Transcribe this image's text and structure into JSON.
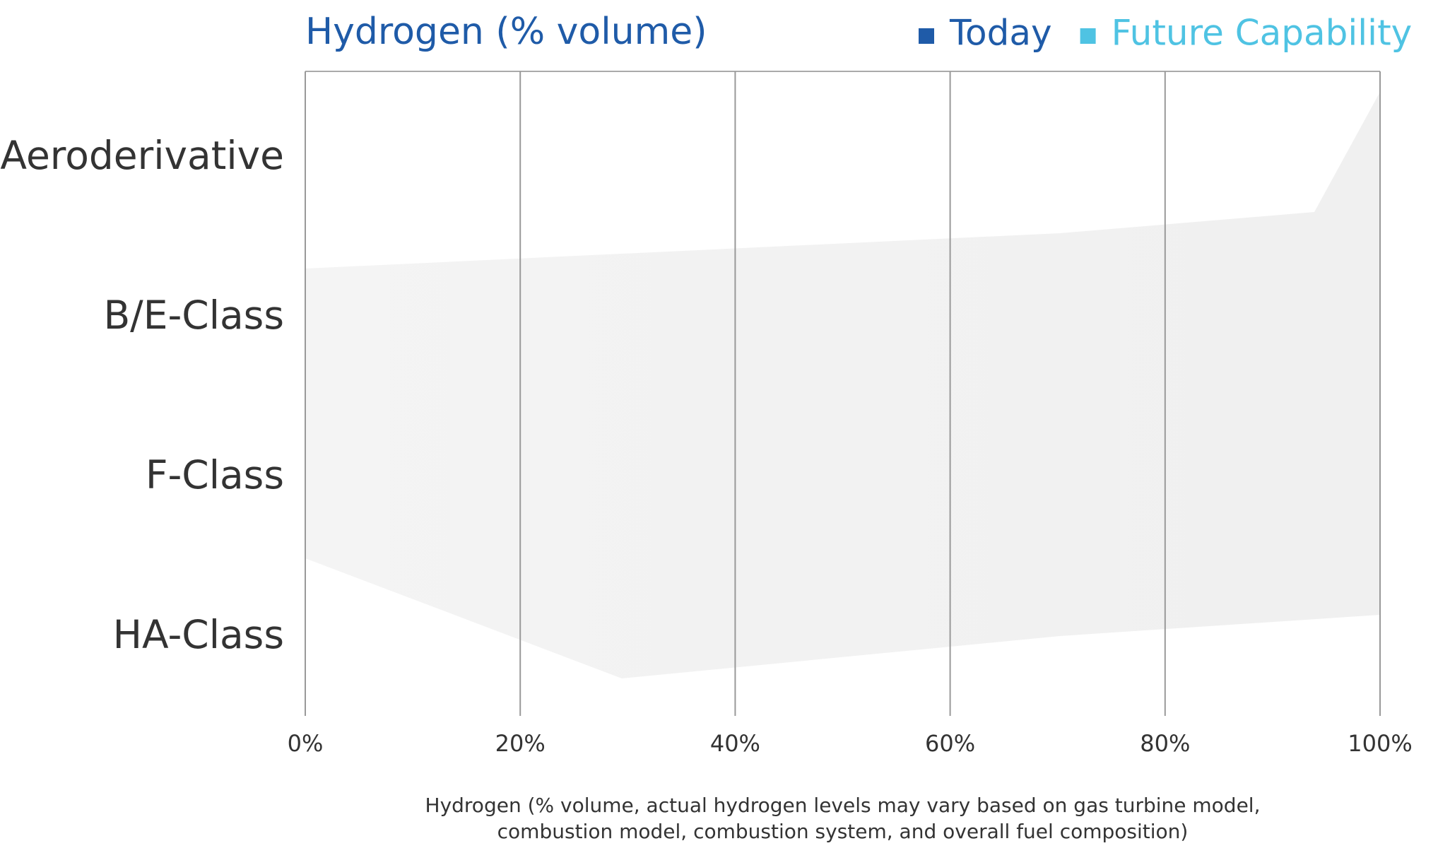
{
  "chart_data": {
    "type": "bar",
    "orientation": "horizontal",
    "title": "Hydrogen (% volume)",
    "categories": [
      "Aeroderivative",
      "B/E-Class",
      "F-Class",
      "HA-Class"
    ],
    "legend": [
      {
        "name": "Today",
        "color": "#1f5ba8"
      },
      {
        "name": "Future Capability",
        "color": "#4fc3e3"
      }
    ],
    "xlim": [
      0,
      100
    ],
    "xticks": [
      {
        "value": 0,
        "label": "0%"
      },
      {
        "value": 20,
        "label": "20%"
      },
      {
        "value": 40,
        "label": "40%"
      },
      {
        "value": 60,
        "label": "60%"
      },
      {
        "value": 80,
        "label": "80%"
      },
      {
        "value": 100,
        "label": "100%"
      }
    ],
    "grid": true,
    "xlabel": [
      "Hydrogen (% volume, actual hydrogen levels may vary based on gas turbine model,",
      "combustion model, combustion system, and overall fuel composition)"
    ]
  }
}
